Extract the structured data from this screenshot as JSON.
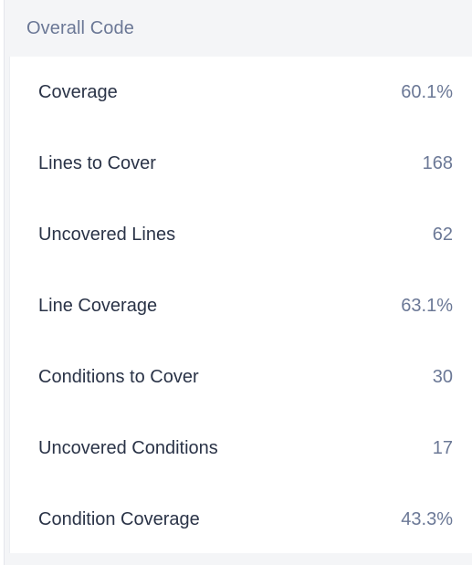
{
  "panel": {
    "title": "Overall Code",
    "metrics": [
      {
        "label": "Coverage",
        "value": "60.1%"
      },
      {
        "label": "Lines to Cover",
        "value": "168"
      },
      {
        "label": "Uncovered Lines",
        "value": "62"
      },
      {
        "label": "Line Coverage",
        "value": "63.1%"
      },
      {
        "label": "Conditions to Cover",
        "value": "30"
      },
      {
        "label": "Uncovered Conditions",
        "value": "17"
      },
      {
        "label": "Condition Coverage",
        "value": "43.3%"
      }
    ]
  },
  "colors": {
    "background": "#f4f5f7",
    "label_text": "#2a3347",
    "value_text": "#6b7896"
  }
}
